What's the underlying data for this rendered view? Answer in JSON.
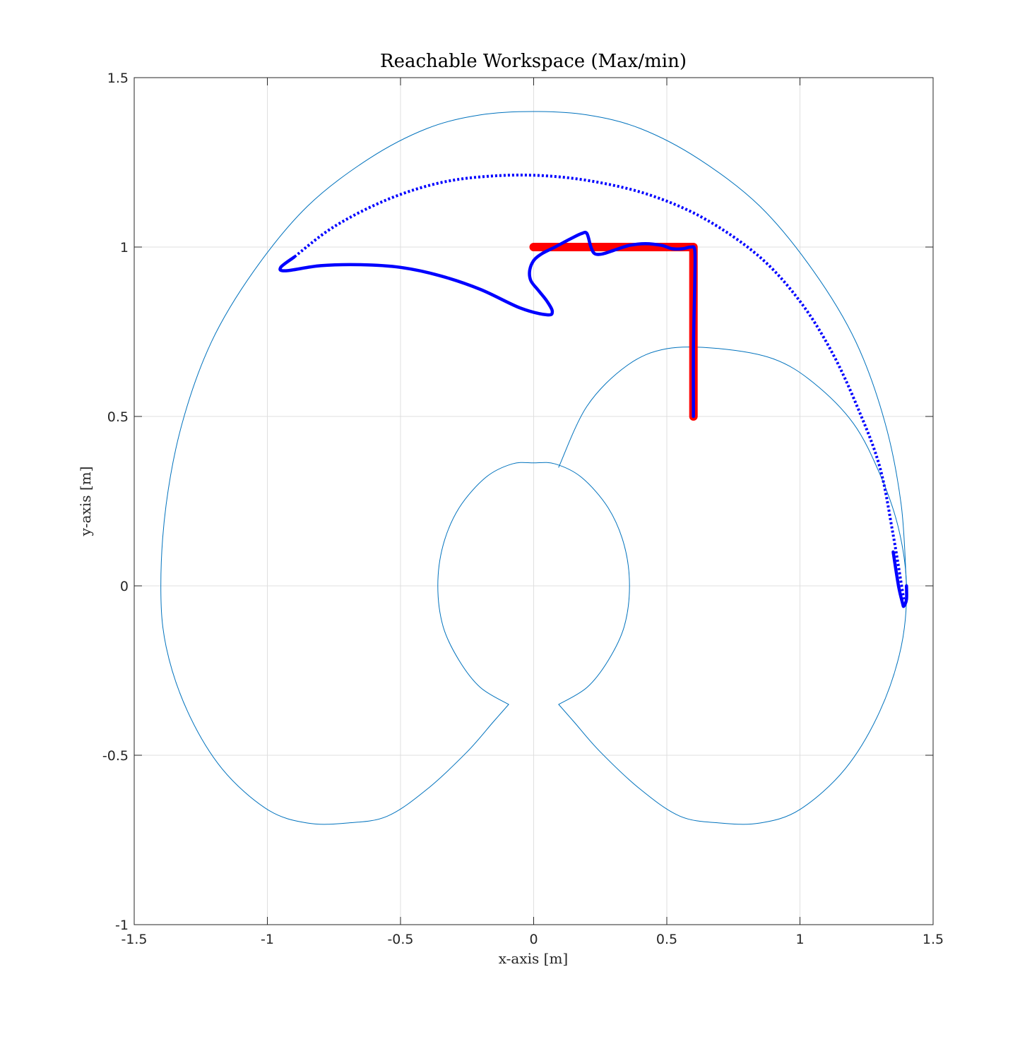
{
  "chart_data": {
    "type": "line",
    "title": "Reachable Workspace (Max/min)",
    "xlabel": "x-axis [m]",
    "ylabel": "y-axis [m]",
    "xlim": [
      -1.5,
      1.5
    ],
    "ylim": [
      -1,
      1.5
    ],
    "xticks": [
      -1.5,
      -1,
      -0.5,
      0,
      0.5,
      1,
      1.5
    ],
    "xtick_labels": [
      "-1.5",
      "-1",
      "-0.5",
      "0",
      "0.5",
      "1",
      "1.5"
    ],
    "yticks": [
      -1,
      -0.5,
      0,
      0.5,
      1,
      1.5
    ],
    "ytick_labels": [
      "-1",
      "-0.5",
      "0",
      "0.5",
      "1",
      "1.5"
    ],
    "grid": true,
    "colors": {
      "workspace": "#0072BD",
      "trajectory": "#0000FF",
      "reference": "#FF0000",
      "axis": "#262626",
      "grid": "#dfdfdf"
    },
    "series": [
      {
        "style": "thin-line",
        "color": "#0072BD",
        "points": [
          [
            0.094,
            0.35
          ],
          [
            0.2,
            0.53
          ],
          [
            0.35,
            0.65
          ],
          [
            0.5,
            0.7
          ],
          [
            0.7,
            0.7
          ],
          [
            0.9,
            0.67
          ],
          [
            1.05,
            0.6
          ],
          [
            1.2,
            0.48
          ],
          [
            1.3,
            0.33
          ],
          [
            1.37,
            0.17
          ],
          [
            1.4,
            0
          ],
          [
            1.38,
            -0.18
          ],
          [
            1.3,
            -0.37
          ],
          [
            1.17,
            -0.54
          ],
          [
            1.0,
            -0.66
          ],
          [
            0.85,
            -0.7
          ],
          [
            0.7,
            -0.7
          ],
          [
            0.55,
            -0.68
          ],
          [
            0.4,
            -0.6
          ],
          [
            0.25,
            -0.49
          ],
          [
            0.15,
            -0.4
          ],
          [
            0.094,
            -0.35
          ]
        ]
      },
      {
        "style": "thin-line",
        "color": "#0072BD",
        "points": [
          [
            0.094,
            -0.35
          ],
          [
            0.2,
            -0.3
          ],
          [
            0.28,
            -0.22
          ],
          [
            0.34,
            -0.12
          ],
          [
            0.36,
            0
          ],
          [
            0.34,
            0.12
          ],
          [
            0.28,
            0.23
          ],
          [
            0.18,
            0.32
          ],
          [
            0.08,
            0.36
          ],
          [
            0,
            0.363
          ],
          [
            -0.08,
            0.36
          ],
          [
            -0.18,
            0.32
          ],
          [
            -0.28,
            0.23
          ],
          [
            -0.34,
            0.12
          ],
          [
            -0.36,
            0
          ],
          [
            -0.34,
            -0.12
          ],
          [
            -0.28,
            -0.22
          ],
          [
            -0.2,
            -0.3
          ],
          [
            -0.094,
            -0.35
          ]
        ]
      },
      {
        "style": "thin-line",
        "color": "#0072BD",
        "points": [
          [
            -0.094,
            -0.35
          ],
          [
            -0.15,
            -0.4
          ],
          [
            -0.25,
            -0.49
          ],
          [
            -0.4,
            -0.6
          ],
          [
            -0.55,
            -0.68
          ],
          [
            -0.7,
            -0.7
          ],
          [
            -0.85,
            -0.7
          ],
          [
            -1.0,
            -0.66
          ],
          [
            -1.17,
            -0.54
          ],
          [
            -1.3,
            -0.37
          ],
          [
            -1.38,
            -0.18
          ],
          [
            -1.4,
            0
          ],
          [
            -1.38,
            0.24
          ],
          [
            -1.32,
            0.48
          ],
          [
            -1.21,
            0.72
          ],
          [
            -1.05,
            0.93
          ],
          [
            -0.85,
            1.12
          ],
          [
            -0.62,
            1.26
          ],
          [
            -0.4,
            1.35
          ],
          [
            -0.2,
            1.39
          ],
          [
            0,
            1.4
          ],
          [
            0.2,
            1.39
          ],
          [
            0.4,
            1.35
          ],
          [
            0.62,
            1.26
          ],
          [
            0.85,
            1.12
          ],
          [
            1.05,
            0.93
          ],
          [
            1.21,
            0.72
          ],
          [
            1.32,
            0.48
          ],
          [
            1.38,
            0.24
          ],
          [
            1.4,
            0
          ]
        ]
      },
      {
        "style": "dotted-thick",
        "color": "#0000FF",
        "points": [
          [
            1.39,
            -0.04
          ],
          [
            1.35,
            0.15
          ],
          [
            1.3,
            0.35
          ],
          [
            1.22,
            0.52
          ],
          [
            1.12,
            0.69
          ],
          [
            1.0,
            0.84
          ],
          [
            0.85,
            0.97
          ],
          [
            0.65,
            1.08
          ],
          [
            0.45,
            1.15
          ],
          [
            0.25,
            1.19
          ],
          [
            0.05,
            1.21
          ],
          [
            -0.15,
            1.21
          ],
          [
            -0.35,
            1.19
          ],
          [
            -0.55,
            1.14
          ],
          [
            -0.75,
            1.06
          ],
          [
            -0.9,
            0.97
          ]
        ]
      },
      {
        "style": "thick-line",
        "color": "#0000FF",
        "points": [
          [
            -0.9,
            0.97
          ],
          [
            -0.95,
            0.94
          ],
          [
            -0.93,
            0.93
          ],
          [
            -0.8,
            0.945
          ],
          [
            -0.65,
            0.948
          ],
          [
            -0.5,
            0.94
          ],
          [
            -0.35,
            0.915
          ],
          [
            -0.2,
            0.875
          ],
          [
            -0.05,
            0.82
          ],
          [
            0.05,
            0.8
          ],
          [
            0.07,
            0.81
          ],
          [
            0.05,
            0.84
          ],
          [
            0.02,
            0.87
          ],
          [
            -0.01,
            0.9
          ],
          [
            -0.015,
            0.93
          ],
          [
            0,
            0.96
          ],
          [
            0.03,
            0.98
          ],
          [
            0.08,
            1.0
          ],
          [
            0.14,
            1.025
          ],
          [
            0.18,
            1.04
          ],
          [
            0.2,
            1.04
          ],
          [
            0.215,
            1.0
          ],
          [
            0.23,
            0.98
          ],
          [
            0.26,
            0.98
          ],
          [
            0.3,
            0.99
          ],
          [
            0.36,
            1.005
          ],
          [
            0.42,
            1.01
          ],
          [
            0.48,
            1.005
          ],
          [
            0.52,
            0.995
          ],
          [
            0.56,
            0.995
          ],
          [
            0.59,
            1.0
          ],
          [
            0.605,
            0.99
          ],
          [
            0.605,
            0.9
          ],
          [
            0.6,
            0.7
          ],
          [
            0.6,
            0.5
          ]
        ]
      },
      {
        "style": "thick-line",
        "color": "#0000FF",
        "points": [
          [
            1.4,
            0
          ],
          [
            1.4,
            -0.04
          ],
          [
            1.39,
            -0.06
          ],
          [
            1.385,
            -0.05
          ],
          [
            1.37,
            0
          ],
          [
            1.35,
            0.1
          ]
        ]
      },
      {
        "style": "reference-line",
        "color": "#FF0000",
        "points": [
          [
            0,
            1.0
          ],
          [
            0.6,
            1.0
          ],
          [
            0.6,
            0.5
          ]
        ]
      }
    ]
  }
}
